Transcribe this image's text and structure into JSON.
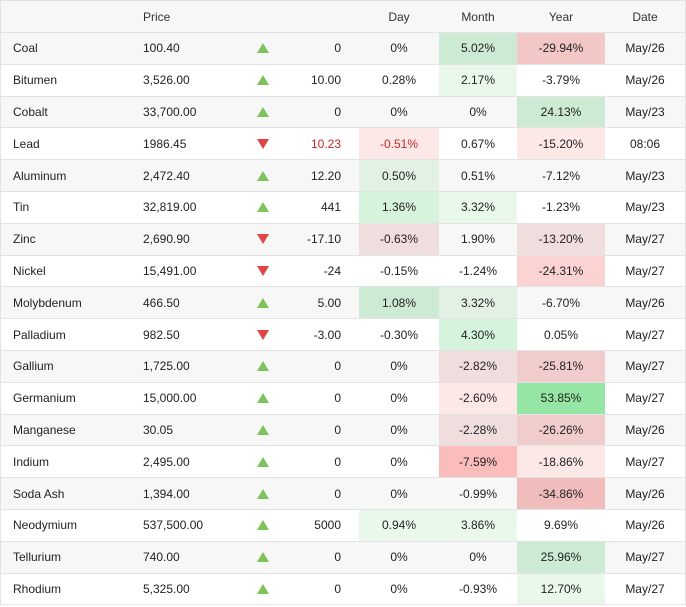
{
  "header": {
    "price": "Price",
    "day": "Day",
    "month": "Month",
    "year": "Year",
    "date": "Date"
  },
  "rows": [
    {
      "name": "Coal",
      "price": "100.40",
      "dir": "up",
      "change": "0",
      "day": "0%",
      "month": "5.02%",
      "year": "-29.94%",
      "date": "May/26",
      "day_bg": "",
      "month_bg": "#cdebd4",
      "year_bg": "#f4c7c7",
      "change_color": ""
    },
    {
      "name": "Bitumen",
      "price": "3,526.00",
      "dir": "up",
      "change": "10.00",
      "day": "0.28%",
      "month": "2.17%",
      "year": "-3.79%",
      "date": "May/26",
      "day_bg": "",
      "month_bg": "#eaf8ec",
      "year_bg": "",
      "change_color": ""
    },
    {
      "name": "Cobalt",
      "price": "33,700.00",
      "dir": "up",
      "change": "0",
      "day": "0%",
      "month": "0%",
      "year": "24.13%",
      "date": "May/23",
      "day_bg": "",
      "month_bg": "",
      "year_bg": "#cdebd4",
      "change_color": ""
    },
    {
      "name": "Lead",
      "price": "1986.45",
      "dir": "down",
      "change": "10.23",
      "day": "-0.51%",
      "month": "0.67%",
      "year": "-15.20%",
      "date": "08:06",
      "day_bg": "#fde8e8",
      "month_bg": "",
      "year_bg": "#fde8e8",
      "change_color": "#c62828",
      "day_color": "#c62828"
    },
    {
      "name": "Aluminum",
      "price": "2,472.40",
      "dir": "up",
      "change": "12.20",
      "day": "0.50%",
      "month": "0.51%",
      "year": "-7.12%",
      "date": "May/23",
      "day_bg": "#e2f1e4",
      "month_bg": "",
      "year_bg": "",
      "change_color": ""
    },
    {
      "name": "Tin",
      "price": "32,819.00",
      "dir": "up",
      "change": "441",
      "day": "1.36%",
      "month": "3.32%",
      "year": "-1.23%",
      "date": "May/23",
      "day_bg": "#d6f3dc",
      "month_bg": "#eaf8ec",
      "year_bg": "",
      "change_color": ""
    },
    {
      "name": "Zinc",
      "price": "2,690.90",
      "dir": "down",
      "change": "-17.10",
      "day": "-0.63%",
      "month": "1.90%",
      "year": "-13.20%",
      "date": "May/27",
      "day_bg": "#f0dede",
      "month_bg": "",
      "year_bg": "#f0dede",
      "change_color": ""
    },
    {
      "name": "Nickel",
      "price": "15,491.00",
      "dir": "down",
      "change": "-24",
      "day": "-0.15%",
      "month": "-1.24%",
      "year": "-24.31%",
      "date": "May/27",
      "day_bg": "",
      "month_bg": "",
      "year_bg": "#fbd3d3",
      "change_color": ""
    },
    {
      "name": "Molybdenum",
      "price": "466.50",
      "dir": "up",
      "change": "5.00",
      "day": "1.08%",
      "month": "3.32%",
      "year": "-6.70%",
      "date": "May/26",
      "day_bg": "#cdebd4",
      "month_bg": "#e2f1e4",
      "year_bg": "",
      "change_color": ""
    },
    {
      "name": "Palladium",
      "price": "982.50",
      "dir": "down",
      "change": "-3.00",
      "day": "-0.30%",
      "month": "4.30%",
      "year": "0.05%",
      "date": "May/27",
      "day_bg": "",
      "month_bg": "#d6f3dc",
      "year_bg": "",
      "change_color": ""
    },
    {
      "name": "Gallium",
      "price": "1,725.00",
      "dir": "up",
      "change": "0",
      "day": "0%",
      "month": "-2.82%",
      "year": "-25.81%",
      "date": "May/27",
      "day_bg": "",
      "month_bg": "#f0dede",
      "year_bg": "#f0cccc",
      "change_color": ""
    },
    {
      "name": "Germanium",
      "price": "15,000.00",
      "dir": "up",
      "change": "0",
      "day": "0%",
      "month": "-2.60%",
      "year": "53.85%",
      "date": "May/27",
      "day_bg": "",
      "month_bg": "#fde8e8",
      "year_bg": "#95e6a5",
      "change_color": ""
    },
    {
      "name": "Manganese",
      "price": "30.05",
      "dir": "up",
      "change": "0",
      "day": "0%",
      "month": "-2.28%",
      "year": "-26.26%",
      "date": "May/26",
      "day_bg": "",
      "month_bg": "#f0dede",
      "year_bg": "#f0cccc",
      "change_color": ""
    },
    {
      "name": "Indium",
      "price": "2,495.00",
      "dir": "up",
      "change": "0",
      "day": "0%",
      "month": "-7.59%",
      "year": "-18.86%",
      "date": "May/27",
      "day_bg": "",
      "month_bg": "#fbbcbc",
      "year_bg": "#fde8e8",
      "change_color": ""
    },
    {
      "name": "Soda Ash",
      "price": "1,394.00",
      "dir": "up",
      "change": "0",
      "day": "0%",
      "month": "-0.99%",
      "year": "-34.86%",
      "date": "May/26",
      "day_bg": "",
      "month_bg": "",
      "year_bg": "#f0bcbc",
      "change_color": ""
    },
    {
      "name": "Neodymium",
      "price": "537,500.00",
      "dir": "up",
      "change": "5000",
      "day": "0.94%",
      "month": "3.86%",
      "year": "9.69%",
      "date": "May/26",
      "day_bg": "#eaf8ec",
      "month_bg": "#eaf8ec",
      "year_bg": "",
      "change_color": ""
    },
    {
      "name": "Tellurium",
      "price": "740.00",
      "dir": "up",
      "change": "0",
      "day": "0%",
      "month": "0%",
      "year": "25.96%",
      "date": "May/27",
      "day_bg": "",
      "month_bg": "",
      "year_bg": "#cdebd4",
      "change_color": ""
    },
    {
      "name": "Rhodium",
      "price": "5,325.00",
      "dir": "up",
      "change": "0",
      "day": "0%",
      "month": "-0.93%",
      "year": "12.70%",
      "date": "May/27",
      "day_bg": "",
      "month_bg": "",
      "year_bg": "#eaf8ec",
      "change_color": ""
    }
  ]
}
